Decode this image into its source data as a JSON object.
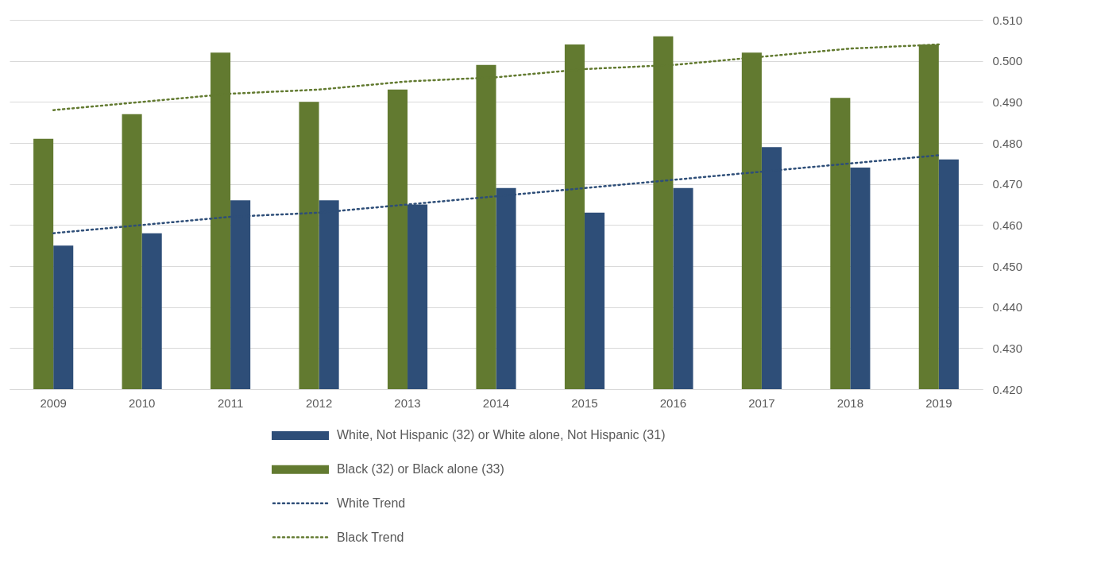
{
  "chart_data": {
    "type": "bar",
    "categories": [
      "2009",
      "2010",
      "2011",
      "2012",
      "2013",
      "2014",
      "2015",
      "2016",
      "2017",
      "2018",
      "2019"
    ],
    "series": [
      {
        "name": "White, Not Hispanic (32) or White alone, Not Hispanic (31)",
        "type": "bar",
        "color": "#2e4e78",
        "values": [
          0.455,
          0.458,
          0.466,
          0.466,
          0.465,
          0.469,
          0.463,
          0.469,
          0.479,
          0.474,
          0.476
        ]
      },
      {
        "name": "Black (32) or Black alone (33)",
        "type": "bar",
        "color": "#627a30",
        "values": [
          0.481,
          0.487,
          0.502,
          0.49,
          0.493,
          0.499,
          0.504,
          0.506,
          0.502,
          0.491,
          0.504
        ]
      },
      {
        "name": "White Trend",
        "type": "line",
        "color": "#2e4e78",
        "line_style": "dotted",
        "values": [
          0.458,
          0.46,
          0.462,
          0.463,
          0.465,
          0.467,
          0.469,
          0.471,
          0.473,
          0.475,
          0.477
        ]
      },
      {
        "name": "Black Trend",
        "type": "line",
        "color": "#627a30",
        "line_style": "dotted",
        "values": [
          0.488,
          0.49,
          0.492,
          0.493,
          0.495,
          0.496,
          0.498,
          0.499,
          0.501,
          0.503,
          0.504
        ]
      }
    ],
    "ylim": [
      0.42,
      0.51
    ],
    "yticks": [
      {
        "value": 0.42,
        "label": "0.420"
      },
      {
        "value": 0.43,
        "label": "0.430"
      },
      {
        "value": 0.44,
        "label": "0.440"
      },
      {
        "value": 0.45,
        "label": "0.450"
      },
      {
        "value": 0.46,
        "label": "0.460"
      },
      {
        "value": 0.47,
        "label": "0.470"
      },
      {
        "value": 0.48,
        "label": "0.480"
      },
      {
        "value": 0.49,
        "label": "0.490"
      },
      {
        "value": 0.5,
        "label": "0.500"
      },
      {
        "value": 0.51,
        "label": "0.510"
      }
    ],
    "grid": "y",
    "legend": "bottom"
  }
}
